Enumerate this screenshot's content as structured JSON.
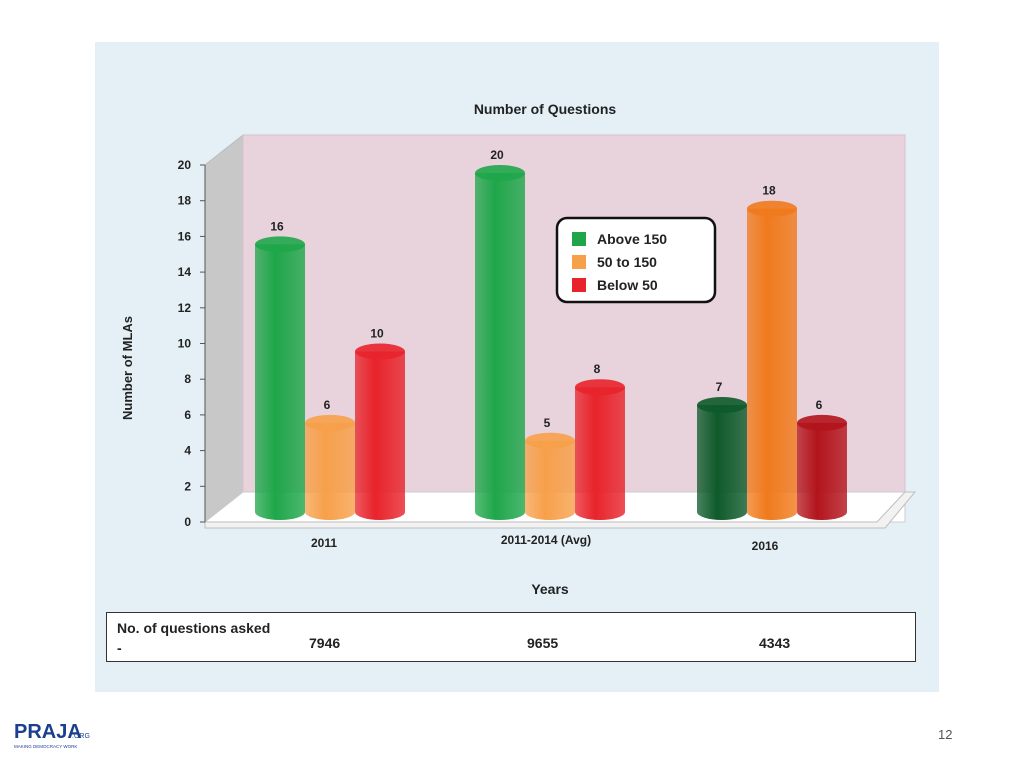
{
  "chart_data": {
    "type": "bar",
    "title": "Number of Questions",
    "xlabel": "Years",
    "ylabel": "Number of MLAs",
    "ylim": [
      0,
      20
    ],
    "yticks": [
      0,
      2,
      4,
      6,
      8,
      10,
      12,
      14,
      16,
      18,
      20
    ],
    "categories": [
      "2011",
      "2011-2014 (Avg)",
      "2016"
    ],
    "series": [
      {
        "name": "Above 150",
        "values": [
          16,
          20,
          7
        ],
        "color": "#1fa64a"
      },
      {
        "name": "50 to 150",
        "values": [
          6,
          5,
          18
        ],
        "color": "#f7a04a"
      },
      {
        "name": "Below 50",
        "values": [
          10,
          8,
          6
        ],
        "color": "#e8232b"
      }
    ],
    "legend_position": "top-right",
    "grid": false
  },
  "questions_table": {
    "label": "No. of questions asked -",
    "values": [
      "7946",
      "9655",
      "4343"
    ]
  },
  "page_number": "12",
  "logo": {
    "text": "PRAJA",
    "suffix": ".ORG",
    "tagline": "MAKING DEMOCRACY WORK"
  }
}
